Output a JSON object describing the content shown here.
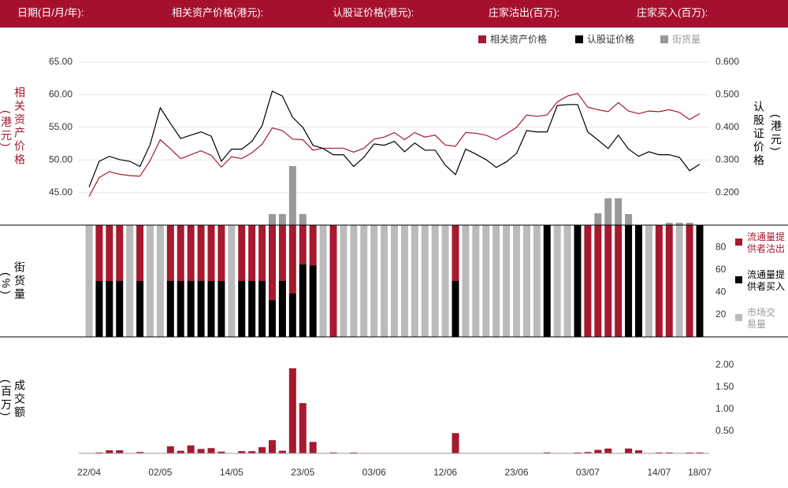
{
  "header": {
    "fields": [
      "日期(日/月/年):",
      "相关资产价格(港元):",
      "认股证价格(港元):",
      "庄家沽出(百万):",
      "庄家买入(百万):"
    ]
  },
  "chart_data": [
    {
      "type": "line",
      "y_label": "相关资产价格",
      "y_unit": "(港元)",
      "y2_label": "认股证价格",
      "y2_unit": "(港元)",
      "ylim": [
        40,
        65
      ],
      "yticks": [
        {
          "value": 45,
          "label": "45.00"
        },
        {
          "value": 50,
          "label": "50.00"
        },
        {
          "value": 55,
          "label": "55.00"
        },
        {
          "value": 60,
          "label": "60.00"
        },
        {
          "value": 65,
          "label": "65.00"
        }
      ],
      "y2lim": [
        0.1,
        0.6
      ],
      "y2ticks": [
        {
          "value": 0.2,
          "label": "0.200"
        },
        {
          "value": 0.3,
          "label": "0.300"
        },
        {
          "value": 0.4,
          "label": "0.400"
        },
        {
          "value": 0.5,
          "label": "0.500"
        },
        {
          "value": 0.6,
          "label": "0.600"
        }
      ],
      "grid": true,
      "series": [
        {
          "name": "相关资产价格",
          "color": "#a6192e",
          "values": [
            44.4,
            47.3,
            48.2,
            47.8,
            47.6,
            47.5,
            49.9,
            53.1,
            51.7,
            50.2,
            50.8,
            51.4,
            50.7,
            48.9,
            50.5,
            50.2,
            51.1,
            52.4,
            54.9,
            54.5,
            53.2,
            53.1,
            51.5,
            51.8,
            51.8,
            51.8,
            51.2,
            51.8,
            53.2,
            53.5,
            54.2,
            53.1,
            54.2,
            53.5,
            53.8,
            52.3,
            52.1,
            54.2,
            54.1,
            53.8,
            53.1,
            54.0,
            55.0,
            56.9,
            56.7,
            56.9,
            58.9,
            59.8,
            60.2,
            58.1,
            57.7,
            57.4,
            58.8,
            57.5,
            57.1,
            57.5,
            57.4,
            57.7,
            57.3,
            56.2,
            57.1
          ]
        },
        {
          "name": "认股证价格",
          "color": "#000000",
          "axis": "y2",
          "values": [
            0.217,
            0.296,
            0.311,
            0.301,
            0.296,
            0.28,
            0.347,
            0.46,
            0.412,
            0.366,
            0.376,
            0.386,
            0.373,
            0.296,
            0.333,
            0.333,
            0.357,
            0.405,
            0.511,
            0.496,
            0.431,
            0.4,
            0.345,
            0.335,
            0.316,
            0.316,
            0.28,
            0.308,
            0.349,
            0.345,
            0.357,
            0.325,
            0.352,
            0.33,
            0.33,
            0.284,
            0.255,
            0.333,
            0.318,
            0.301,
            0.277,
            0.294,
            0.32,
            0.39,
            0.386,
            0.386,
            0.467,
            0.47,
            0.47,
            0.386,
            0.361,
            0.335,
            0.376,
            0.333,
            0.311,
            0.325,
            0.316,
            0.316,
            0.308,
            0.267,
            0.287
          ]
        },
        {
          "name": "街货量",
          "color": "#999999",
          "values": [
            0,
            0,
            0,
            0,
            0,
            0,
            0,
            0,
            0,
            0,
            0,
            0,
            0,
            0,
            0,
            0,
            0,
            0,
            14,
            14,
            75,
            14,
            0,
            0,
            0,
            0,
            0,
            0,
            0,
            0,
            0,
            0,
            0,
            0,
            0,
            0,
            0,
            0,
            0,
            0,
            0,
            0,
            0,
            0,
            0,
            0,
            0,
            0,
            0,
            0,
            15,
            34,
            34,
            14,
            0,
            0,
            0,
            3,
            3,
            3,
            0
          ]
        }
      ]
    },
    {
      "type": "stacked_bar",
      "y_label": "街货量",
      "y_unit": "(%)",
      "ylim": [
        0,
        100
      ],
      "yticks": [
        20,
        40,
        60,
        80
      ],
      "series": [
        {
          "name": "流通量提供者买入",
          "color": "#000000",
          "values": [
            0,
            50,
            50,
            50,
            0,
            50,
            0,
            0,
            50,
            50,
            50,
            50,
            50,
            50,
            0,
            50,
            50,
            50,
            33,
            50,
            39,
            65,
            64,
            0,
            0,
            0,
            0,
            0,
            0,
            0,
            0,
            0,
            0,
            0,
            0,
            0,
            50,
            0,
            0,
            0,
            0,
            0,
            0,
            0,
            0,
            100,
            0,
            0,
            100,
            0,
            0,
            0,
            0,
            100,
            100,
            0,
            0,
            0,
            0,
            0,
            100
          ]
        },
        {
          "name": "流通量提供者沽出",
          "color": "#a6192e",
          "values": [
            0,
            50,
            50,
            50,
            0,
            50,
            0,
            0,
            50,
            50,
            50,
            50,
            50,
            50,
            0,
            50,
            50,
            50,
            67,
            50,
            61,
            35,
            36,
            0,
            100,
            0,
            0,
            0,
            0,
            0,
            0,
            0,
            0,
            0,
            0,
            0,
            50,
            0,
            0,
            0,
            0,
            0,
            0,
            0,
            0,
            0,
            0,
            0,
            0,
            100,
            100,
            100,
            100,
            0,
            0,
            0,
            100,
            100,
            0,
            100,
            0
          ]
        },
        {
          "name": "市场交易量",
          "color": "#bbbbbb",
          "values": [
            100,
            0,
            0,
            0,
            100,
            0,
            100,
            100,
            0,
            0,
            0,
            0,
            0,
            0,
            100,
            0,
            0,
            0,
            0,
            0,
            0,
            0,
            0,
            100,
            0,
            100,
            100,
            100,
            100,
            100,
            100,
            100,
            100,
            100,
            100,
            100,
            0,
            100,
            100,
            100,
            100,
            100,
            100,
            100,
            100,
            0,
            100,
            100,
            0,
            0,
            0,
            0,
            0,
            0,
            0,
            100,
            0,
            0,
            100,
            0,
            0
          ]
        }
      ]
    },
    {
      "type": "bar",
      "y_label": "成交额",
      "y_unit": "(百万)",
      "ylim": [
        0,
        2
      ],
      "yticks": [
        {
          "value": 0.5,
          "label": "0.50"
        },
        {
          "value": 1,
          "label": "1.00"
        },
        {
          "value": 1.5,
          "label": "1.50"
        },
        {
          "value": 2,
          "label": "2.00"
        }
      ],
      "color": "#a6192e",
      "categories": [
        "22/04",
        null,
        null,
        null,
        null,
        null,
        null,
        "02/05",
        null,
        null,
        null,
        null,
        null,
        null,
        "14/05",
        null,
        null,
        null,
        null,
        null,
        null,
        "23/05",
        null,
        null,
        null,
        null,
        null,
        null,
        "03/06",
        null,
        null,
        null,
        null,
        null,
        null,
        "12/06",
        null,
        null,
        null,
        null,
        null,
        null,
        "23/06",
        null,
        null,
        null,
        null,
        null,
        null,
        "03/07",
        null,
        null,
        null,
        null,
        null,
        null,
        "14/07",
        null,
        null,
        null,
        "18/07"
      ],
      "values": [
        0,
        0.02,
        0.07,
        0.07,
        0,
        0.03,
        0,
        0,
        0.16,
        0.06,
        0.18,
        0.1,
        0.12,
        0.04,
        0,
        0.05,
        0.05,
        0.14,
        0.3,
        0.06,
        1.93,
        1.14,
        0.26,
        0,
        0.02,
        0,
        0.02,
        0,
        0,
        0,
        0,
        0,
        0,
        0,
        0,
        0,
        0.46,
        0,
        0,
        0,
        0,
        0,
        0,
        0,
        0,
        0.02,
        0,
        0,
        0.02,
        0.03,
        0.08,
        0.11,
        0,
        0.11,
        0.07,
        0,
        0.02,
        0.02,
        0,
        0.02,
        0.02
      ]
    }
  ]
}
